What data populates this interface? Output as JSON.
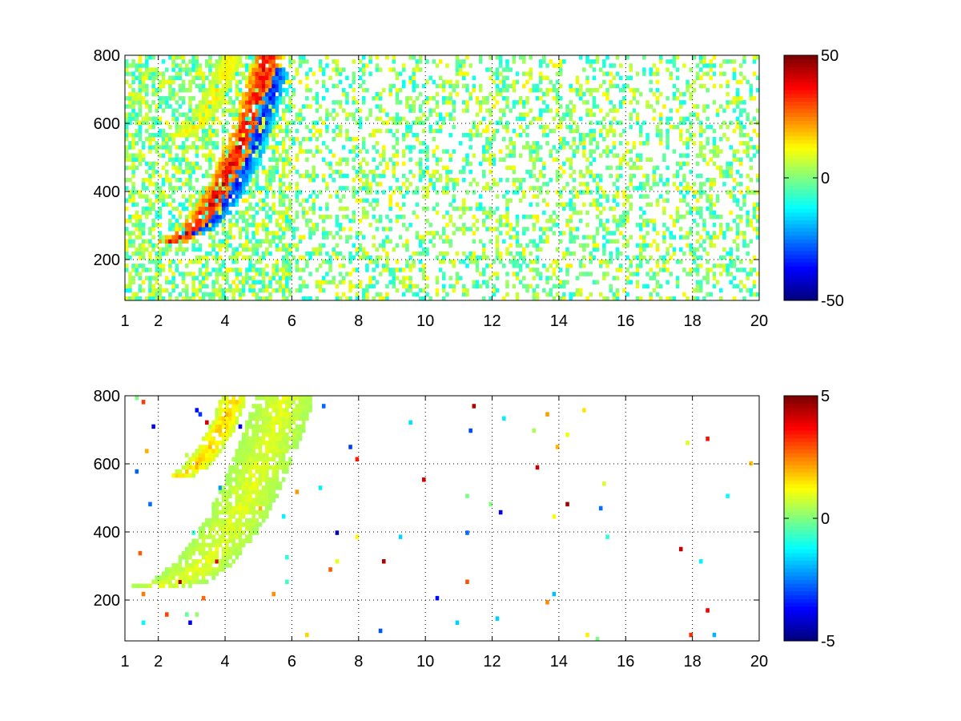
{
  "chart_data": [
    {
      "type": "heatmap",
      "title": "",
      "xlabel": "",
      "ylabel": "",
      "xlim": [
        1,
        20
      ],
      "ylim": [
        80,
        800
      ],
      "x_ticks": [
        "1",
        "2",
        "4",
        "6",
        "8",
        "10",
        "12",
        "14",
        "16",
        "18",
        "20"
      ],
      "x_tick_values": [
        1,
        2,
        4,
        6,
        8,
        10,
        12,
        14,
        16,
        18,
        20
      ],
      "y_ticks": [
        "200",
        "400",
        "600",
        "800"
      ],
      "y_tick_values": [
        200,
        400,
        600,
        800
      ],
      "grid": true,
      "colorbar": {
        "min": -50,
        "max": 50,
        "ticks": [
          "50",
          "0",
          "-50"
        ],
        "tick_values": [
          50,
          0,
          -50
        ],
        "colormap": "jet"
      },
      "features": [
        {
          "type": "arc",
          "x0": 1.9,
          "y0": 245,
          "x1": 5.3,
          "y1": 800,
          "value": 40,
          "width": 0.45
        },
        {
          "type": "arc",
          "x0": 2.6,
          "y0": 270,
          "x1": 5.6,
          "y1": 760,
          "value": -35,
          "width": 0.35
        },
        {
          "type": "arc",
          "x0": 2.3,
          "y0": 560,
          "x1": 4.2,
          "y1": 800,
          "value": 15,
          "width": 0.35
        }
      ],
      "noise": {
        "x_range": [
          1,
          20
        ],
        "values_range": [
          -12,
          14
        ],
        "density": 0.55
      }
    },
    {
      "type": "heatmap",
      "title": "",
      "xlabel": "",
      "ylabel": "",
      "xlim": [
        1,
        20
      ],
      "ylim": [
        80,
        800
      ],
      "x_ticks": [
        "1",
        "2",
        "4",
        "6",
        "8",
        "10",
        "12",
        "14",
        "16",
        "18",
        "20"
      ],
      "x_tick_values": [
        1,
        2,
        4,
        6,
        8,
        10,
        12,
        14,
        16,
        18,
        20
      ],
      "y_ticks": [
        "200",
        "400",
        "600",
        "800"
      ],
      "y_tick_values": [
        200,
        400,
        600,
        800
      ],
      "grid": true,
      "colorbar": {
        "min": -5,
        "max": 5,
        "ticks": [
          "5",
          "0",
          "-5"
        ],
        "tick_values": [
          5,
          0,
          -5
        ],
        "colormap": "jet"
      },
      "features": [
        {
          "type": "arc",
          "x0": 1.8,
          "y0": 240,
          "x1": 5.8,
          "y1": 800,
          "value": 1.0,
          "width": 0.9
        },
        {
          "type": "arc",
          "x0": 2.3,
          "y0": 560,
          "x1": 4.3,
          "y1": 800,
          "value": 1.8,
          "width": 0.4
        }
      ],
      "noise": {
        "x_range": [
          1,
          20
        ],
        "values_range": [
          -5,
          5
        ],
        "density": 0.01
      }
    }
  ]
}
